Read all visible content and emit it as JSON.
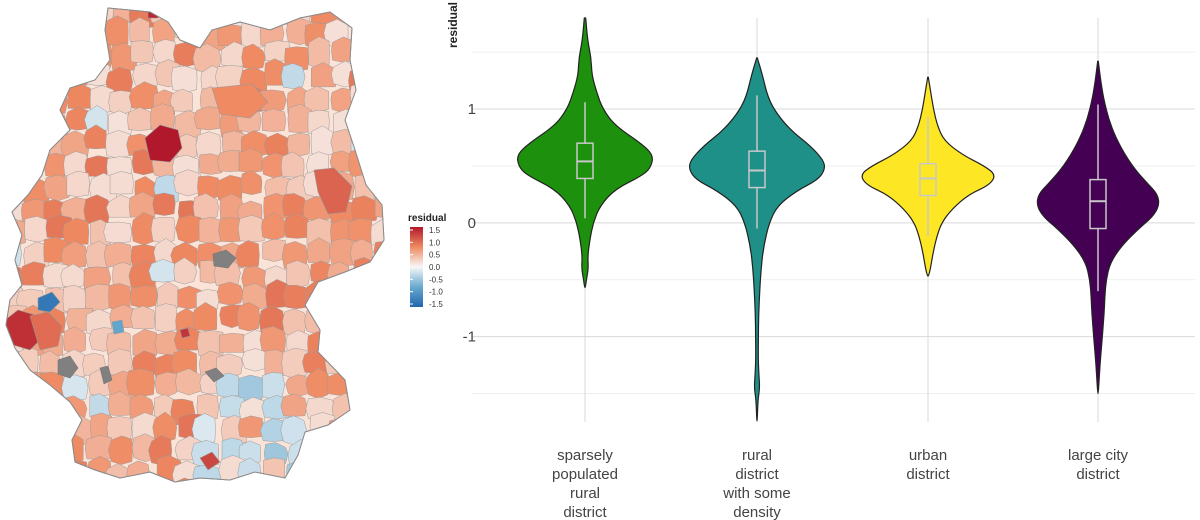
{
  "figure": {
    "map": {
      "legend": {
        "title": "residual",
        "ticks": [
          "1.5",
          "1.0",
          "0.5",
          "0.0",
          "-0.5",
          "-1.0",
          "-1.5"
        ],
        "tick_values": [
          1.5,
          1.0,
          0.5,
          0.0,
          -0.5,
          -1.0,
          -1.5
        ],
        "colors": {
          "high": "#b2182b",
          "mid_high": "#ef8a62",
          "mid": "#f7f7f7",
          "mid_low": "#67a9cf",
          "low": "#2166ac",
          "missing": "#808080"
        }
      }
    },
    "violin": {
      "ylabel": "residual",
      "yticks": [
        "1",
        "0",
        "-1"
      ],
      "ytick_values": [
        1,
        0,
        -1
      ]
    }
  },
  "chart_data": [
    {
      "type": "heatmap",
      "geography": "districts of Germany (choropleth)",
      "legend_title": "residual",
      "legend_range": [
        -1.5,
        1.5
      ],
      "legend_ticks": [
        1.5,
        1.0,
        0.5,
        0.0,
        -0.5,
        -1.0,
        -1.5
      ]
    },
    {
      "type": "violin",
      "ylabel": "residual",
      "ylim": [
        -1.75,
        1.8
      ],
      "yticks": [
        1,
        0,
        -1
      ],
      "grid": true,
      "categories": [
        {
          "label": "sparsely populated rural district",
          "label_lines": [
            "sparsely",
            "populated",
            "rural",
            "district"
          ],
          "color": "#1d910e",
          "box_color": "#c8c8c8",
          "min": -0.57,
          "q1": 0.39,
          "median": 0.54,
          "q3": 0.7,
          "max": 1.8,
          "whisker_low": 0.04,
          "whisker_high": 1.06,
          "density": [
            [
              1.8,
              0.01
            ],
            [
              1.6,
              0.04
            ],
            [
              1.45,
              0.09
            ],
            [
              1.3,
              0.1
            ],
            [
              1.15,
              0.17
            ],
            [
              1.0,
              0.26
            ],
            [
              0.85,
              0.45
            ],
            [
              0.7,
              0.82
            ],
            [
              0.6,
              1.0
            ],
            [
              0.5,
              0.98
            ],
            [
              0.42,
              0.86
            ],
            [
              0.3,
              0.45
            ],
            [
              0.15,
              0.22
            ],
            [
              0.0,
              0.12
            ],
            [
              -0.15,
              0.07
            ],
            [
              -0.3,
              0.04
            ],
            [
              -0.4,
              0.05
            ],
            [
              -0.5,
              0.02
            ],
            [
              -0.57,
              0.005
            ]
          ]
        },
        {
          "label": "rural district with some density",
          "label_lines": [
            "rural",
            "district",
            "with some",
            "density"
          ],
          "color": "#1f9088",
          "box_color": "#c8c8c8",
          "min": -1.74,
          "q1": 0.31,
          "median": 0.46,
          "q3": 0.63,
          "max": 1.45,
          "whisker_low": -0.05,
          "whisker_high": 1.12,
          "density": [
            [
              1.45,
              0.005
            ],
            [
              1.3,
              0.08
            ],
            [
              1.1,
              0.16
            ],
            [
              0.95,
              0.3
            ],
            [
              0.8,
              0.52
            ],
            [
              0.68,
              0.78
            ],
            [
              0.55,
              0.98
            ],
            [
              0.47,
              1.0
            ],
            [
              0.38,
              0.9
            ],
            [
              0.28,
              0.58
            ],
            [
              0.15,
              0.3
            ],
            [
              0.0,
              0.18
            ],
            [
              -0.2,
              0.1
            ],
            [
              -0.4,
              0.06
            ],
            [
              -0.6,
              0.04
            ],
            [
              -0.8,
              0.025
            ],
            [
              -1.0,
              0.02
            ],
            [
              -1.2,
              0.018
            ],
            [
              -1.35,
              0.03
            ],
            [
              -1.45,
              0.04
            ],
            [
              -1.55,
              0.015
            ],
            [
              -1.74,
              0.003
            ]
          ]
        },
        {
          "label": "urban district",
          "label_lines": [
            "urban",
            "district"
          ],
          "color": "#fde725",
          "box_color": "#c8c8c8",
          "min": -0.47,
          "q1": 0.24,
          "median": 0.39,
          "q3": 0.52,
          "max": 1.28,
          "whisker_low": -0.12,
          "whisker_high": 0.93,
          "density": [
            [
              1.28,
              0.005
            ],
            [
              1.15,
              0.04
            ],
            [
              1.0,
              0.08
            ],
            [
              0.85,
              0.14
            ],
            [
              0.72,
              0.24
            ],
            [
              0.6,
              0.5
            ],
            [
              0.5,
              0.83
            ],
            [
              0.42,
              1.0
            ],
            [
              0.33,
              0.9
            ],
            [
              0.25,
              0.6
            ],
            [
              0.12,
              0.35
            ],
            [
              0.0,
              0.2
            ],
            [
              -0.12,
              0.13
            ],
            [
              -0.25,
              0.08
            ],
            [
              -0.35,
              0.05
            ],
            [
              -0.42,
              0.03
            ],
            [
              -0.47,
              0.005
            ]
          ]
        },
        {
          "label": "large city district",
          "label_lines": [
            "large city",
            "district"
          ],
          "color": "#440154",
          "box_color": "#c8c8c8",
          "min": -1.5,
          "q1": -0.05,
          "median": 0.19,
          "q3": 0.38,
          "max": 1.42,
          "whisker_low": -0.6,
          "whisker_high": 1.04,
          "density": [
            [
              1.42,
              0.005
            ],
            [
              1.25,
              0.04
            ],
            [
              1.1,
              0.08
            ],
            [
              0.9,
              0.16
            ],
            [
              0.7,
              0.3
            ],
            [
              0.5,
              0.5
            ],
            [
              0.35,
              0.72
            ],
            [
              0.25,
              0.88
            ],
            [
              0.15,
              0.9
            ],
            [
              0.05,
              0.8
            ],
            [
              -0.05,
              0.6
            ],
            [
              -0.2,
              0.35
            ],
            [
              -0.35,
              0.18
            ],
            [
              -0.5,
              0.12
            ],
            [
              -0.65,
              0.1
            ],
            [
              -0.8,
              0.09
            ],
            [
              -0.95,
              0.07
            ],
            [
              -1.1,
              0.05
            ],
            [
              -1.25,
              0.03
            ],
            [
              -1.4,
              0.015
            ],
            [
              -1.5,
              0.003
            ]
          ]
        }
      ]
    }
  ]
}
